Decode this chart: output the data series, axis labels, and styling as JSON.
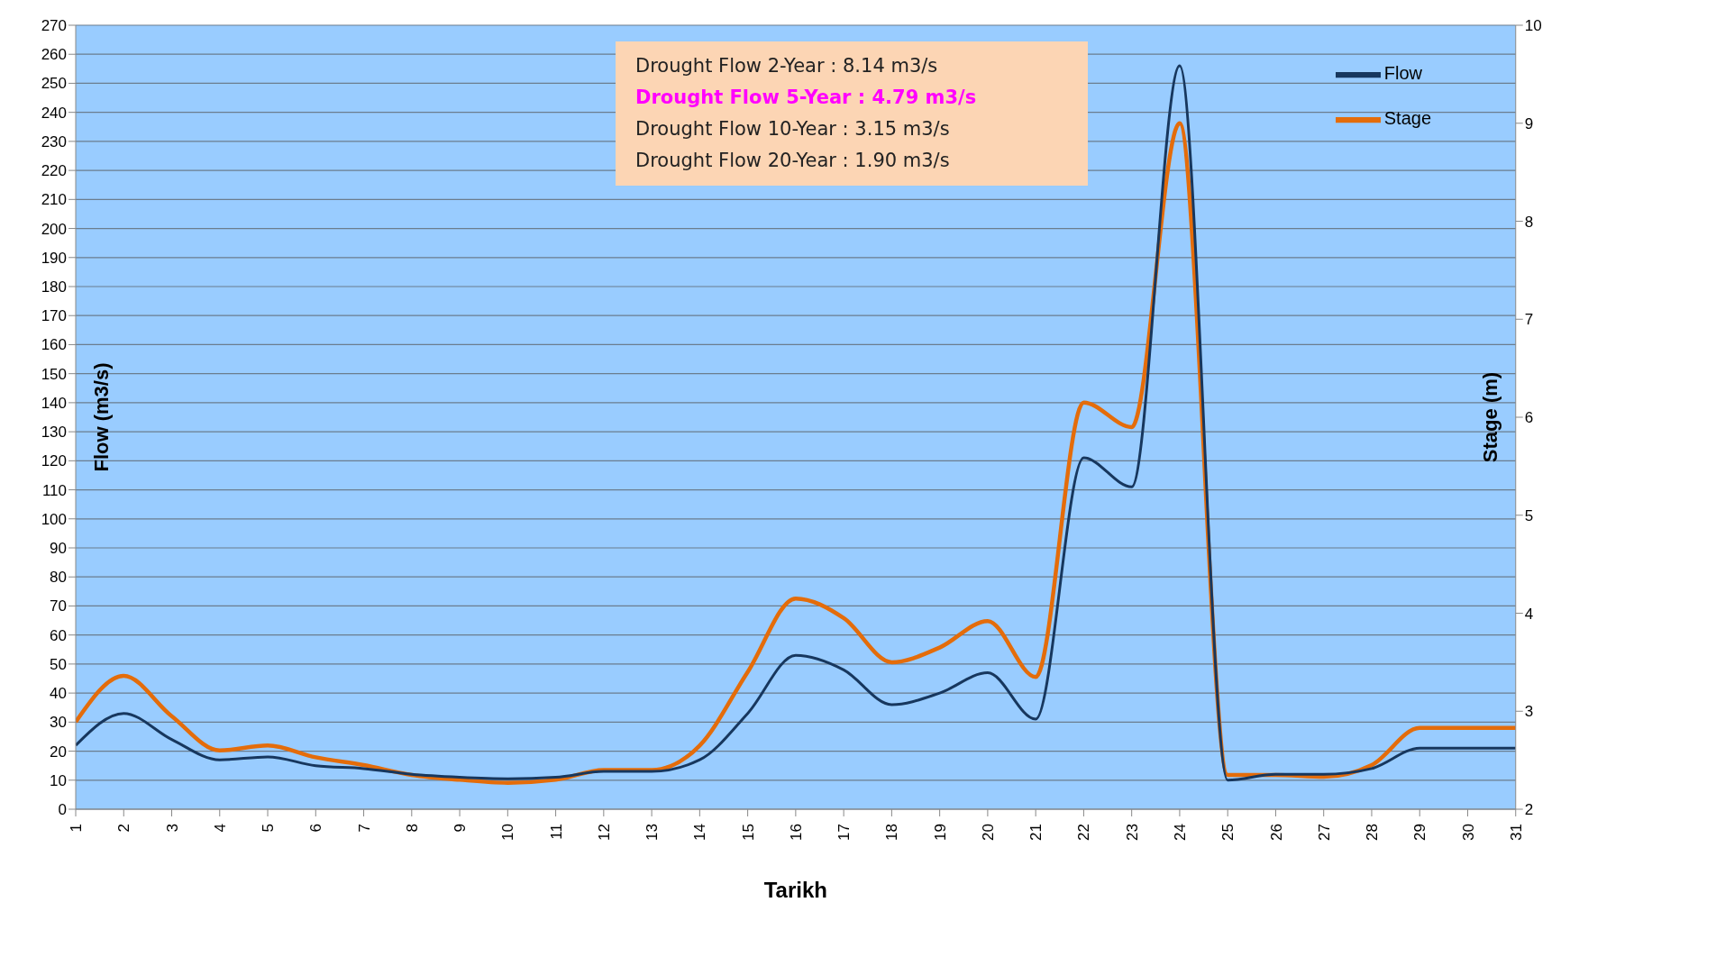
{
  "chart_data": {
    "type": "line",
    "xlabel": "Tarikh",
    "ylabel": "Flow (m3/s)",
    "y2label": "Stage (m)",
    "categories": [
      "1",
      "2",
      "3",
      "4",
      "5",
      "6",
      "7",
      "8",
      "9",
      "10",
      "11",
      "12",
      "13",
      "14",
      "15",
      "16",
      "17",
      "18",
      "19",
      "20",
      "21",
      "22",
      "23",
      "24",
      "25",
      "26",
      "27",
      "28",
      "29",
      "30",
      "31"
    ],
    "series": [
      {
        "name": "Flow",
        "color": "#17375e",
        "values": [
          22,
          33,
          24,
          17,
          18,
          15,
          14,
          12,
          11,
          10.5,
          11,
          13,
          13,
          17,
          33,
          53,
          48,
          36,
          40,
          47,
          31,
          121,
          111,
          256,
          10,
          12,
          12,
          14,
          21,
          21,
          21
        ]
      },
      {
        "name": "Stage",
        "color": "#e46c0a",
        "axis": "y2",
        "values": [
          2.89,
          3.36,
          2.95,
          2.6,
          2.65,
          2.53,
          2.45,
          2.35,
          2.3,
          2.27,
          2.3,
          2.4,
          2.4,
          2.65,
          3.4,
          4.15,
          3.95,
          3.5,
          3.65,
          3.92,
          3.35,
          6.15,
          5.9,
          9.0,
          2.35,
          2.35,
          2.33,
          2.45,
          2.83,
          2.83,
          2.83
        ]
      }
    ],
    "ylim": [
      0,
      270
    ],
    "yticks": [
      0,
      10,
      20,
      30,
      40,
      50,
      60,
      70,
      80,
      90,
      100,
      110,
      120,
      130,
      140,
      150,
      160,
      170,
      180,
      190,
      200,
      210,
      220,
      230,
      240,
      250,
      260,
      270
    ],
    "y2lim": [
      2,
      10
    ],
    "y2ticks": [
      2,
      3,
      4,
      5,
      6,
      7,
      8,
      9,
      10
    ],
    "grid": "y",
    "legend": "top right",
    "marker": "none",
    "line_style": "solid",
    "annotations": [
      "Drought Flow 2-Year : 8.14 m3/s",
      "Drought Flow 5-Year :  4.79 m3/s",
      "Drought Flow 10-Year : 3.15 m3/s",
      "Drought Flow 20-Year : 1.90 m3/s"
    ]
  }
}
